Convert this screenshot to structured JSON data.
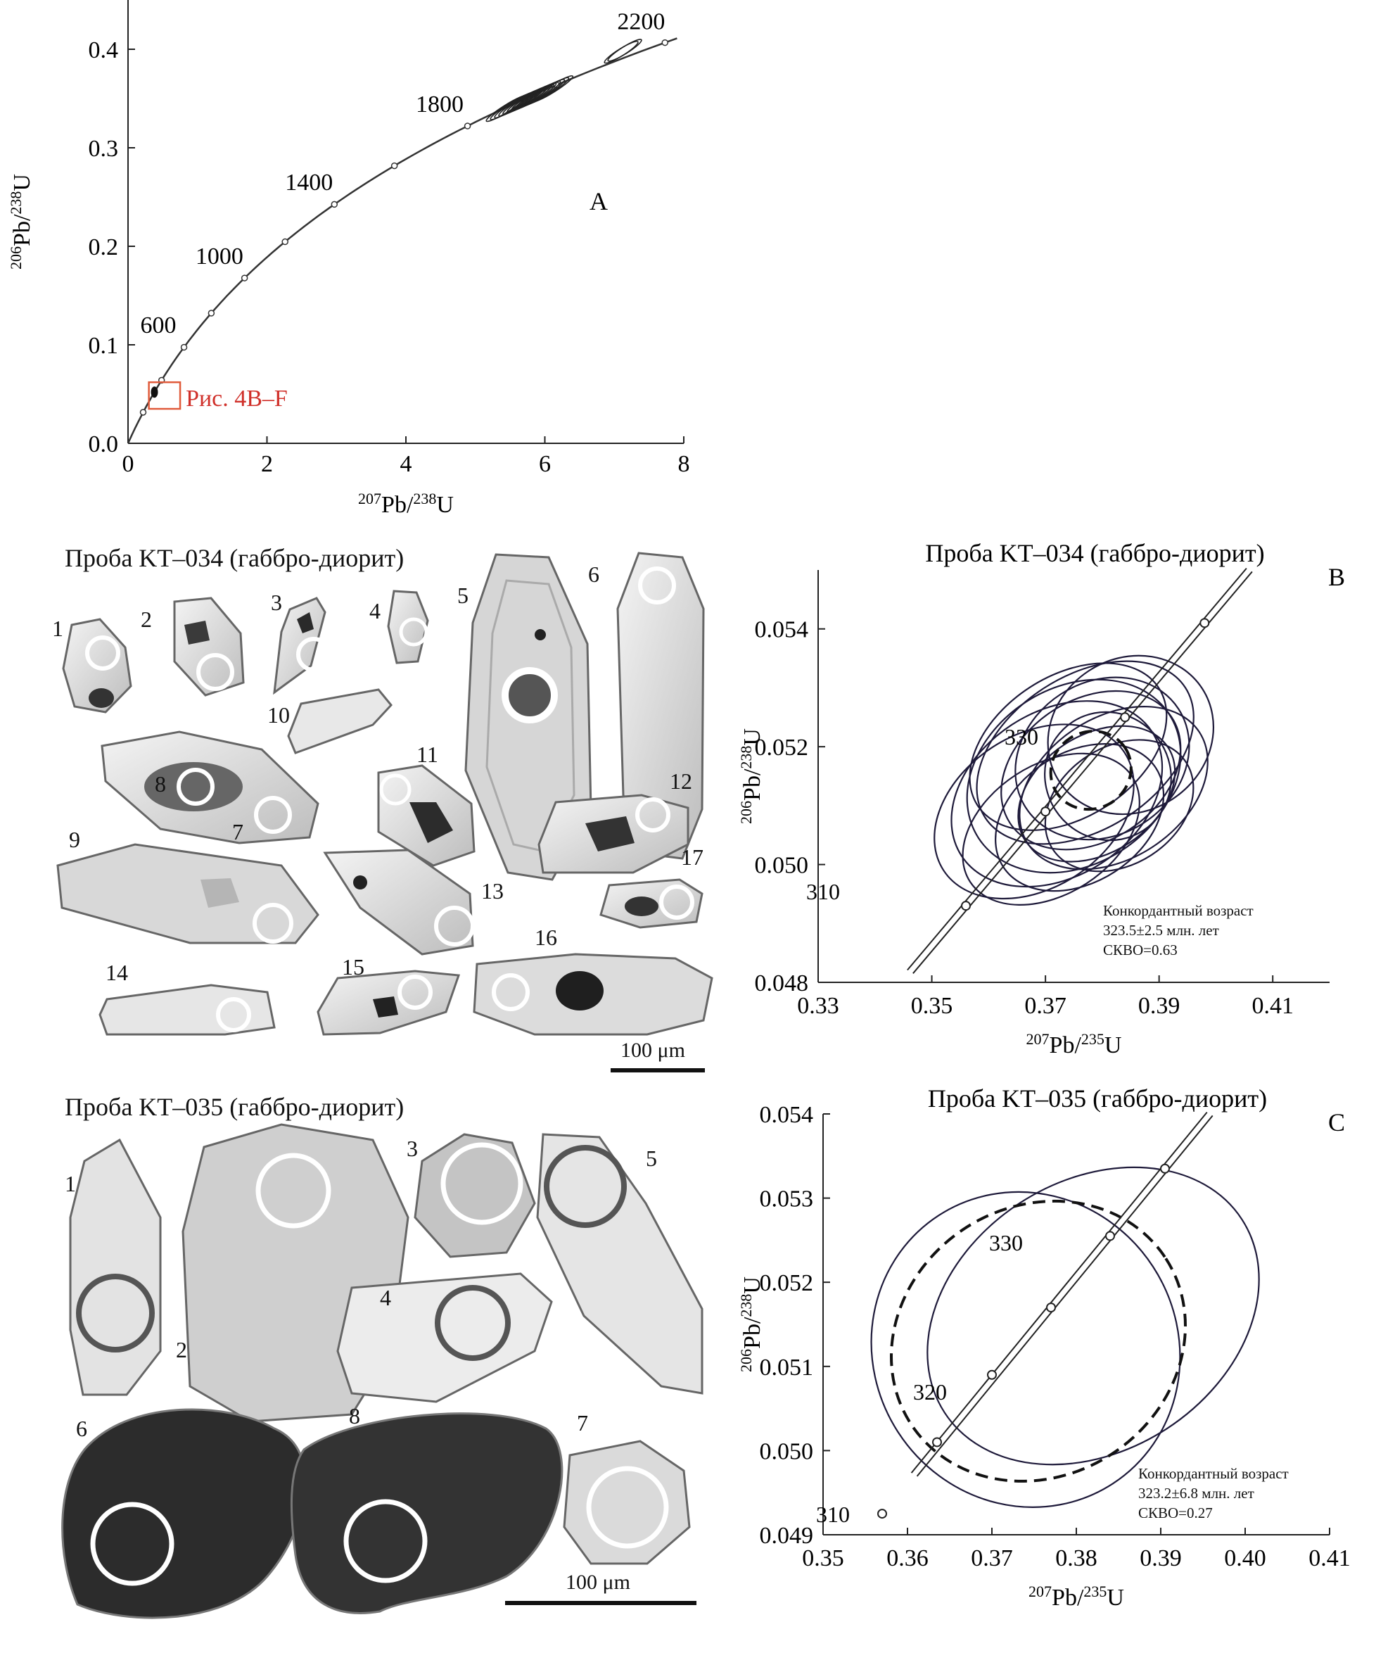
{
  "chart_data": [
    {
      "panel": "A",
      "type": "line",
      "xlabel": "207Pb/238U",
      "ylabel": "206Pb/238U",
      "xlim": [
        0,
        8
      ],
      "ylim": [
        0,
        0.45
      ],
      "x_ticks": [
        "0",
        "2",
        "4",
        "6",
        "8"
      ],
      "y_ticks": [
        "0.0",
        "0.1",
        "0.2",
        "0.3",
        "0.4"
      ],
      "concordia_age_labels": [
        "600",
        "1000",
        "1400",
        "1800",
        "2200"
      ],
      "concordia_labeled_points": [
        {
          "age": "600",
          "x": 0.8,
          "y": 0.098
        },
        {
          "age": "1000",
          "x": 1.68,
          "y": 0.168
        },
        {
          "age": "1400",
          "x": 2.97,
          "y": 0.243
        },
        {
          "age": "1800",
          "x": 4.85,
          "y": 0.322
        },
        {
          "age": "2200",
          "x": 7.75,
          "y": 0.406
        }
      ],
      "inset_label": "Рис. 4B–F",
      "inset_box": {
        "x": [
          0.3,
          0.75
        ],
        "y": [
          0.035,
          0.062
        ]
      },
      "data_clusters": [
        {
          "x": 5.8,
          "y": 0.35,
          "n": 12
        },
        {
          "x": 7.1,
          "y": 0.397,
          "n": 2
        },
        {
          "x": 0.38,
          "y": 0.052,
          "n": 1
        }
      ],
      "panel_letter": "A"
    },
    {
      "panel": "B",
      "type": "scatter",
      "title": "Проба KT–034 (габбро-диорит)",
      "xlabel": "207Pb/235U",
      "ylabel": "206Pb/238U",
      "xlim": [
        0.33,
        0.42
      ],
      "ylim": [
        0.048,
        0.055
      ],
      "x_ticks": [
        "0.33",
        "0.35",
        "0.37",
        "0.39",
        "0.41"
      ],
      "y_ticks": [
        "0.048",
        "0.050",
        "0.052",
        "0.054"
      ],
      "concordia_age_labels": [
        "310",
        "330"
      ],
      "concordia_points": [
        {
          "x": 0.356,
          "y": 0.0493
        },
        {
          "x": 0.37,
          "y": 0.0509
        },
        {
          "x": 0.384,
          "y": 0.0525
        },
        {
          "x": 0.398,
          "y": 0.0541
        }
      ],
      "error_ellipses": [
        {
          "cx": 0.368,
          "cy": 0.0509,
          "rx": 0.019,
          "ry": 0.0013
        },
        {
          "cx": 0.372,
          "cy": 0.0512,
          "rx": 0.02,
          "ry": 0.0014
        },
        {
          "cx": 0.375,
          "cy": 0.0515,
          "rx": 0.02,
          "ry": 0.0015
        },
        {
          "cx": 0.378,
          "cy": 0.0516,
          "rx": 0.017,
          "ry": 0.0012
        },
        {
          "cx": 0.38,
          "cy": 0.0518,
          "rx": 0.016,
          "ry": 0.0013
        },
        {
          "cx": 0.382,
          "cy": 0.0513,
          "rx": 0.018,
          "ry": 0.0012
        },
        {
          "cx": 0.379,
          "cy": 0.0512,
          "rx": 0.015,
          "ry": 0.001
        },
        {
          "cx": 0.376,
          "cy": 0.0508,
          "rx": 0.016,
          "ry": 0.0011
        },
        {
          "cx": 0.374,
          "cy": 0.052,
          "rx": 0.019,
          "ry": 0.0012
        },
        {
          "cx": 0.385,
          "cy": 0.0522,
          "rx": 0.015,
          "ry": 0.0013
        },
        {
          "cx": 0.383,
          "cy": 0.051,
          "rx": 0.014,
          "ry": 0.001
        },
        {
          "cx": 0.371,
          "cy": 0.0506,
          "rx": 0.017,
          "ry": 0.0011
        },
        {
          "cx": 0.377,
          "cy": 0.0519,
          "rx": 0.021,
          "ry": 0.0013
        },
        {
          "cx": 0.381,
          "cy": 0.0515,
          "rx": 0.011,
          "ry": 0.0011
        }
      ],
      "concordant_ellipse": {
        "cx": 0.378,
        "cy": 0.0516,
        "rx": 0.0072,
        "ry": 0.00065
      },
      "legend_lines": [
        "Конкордантный возраст",
        "323.5±2.5 млн. лет",
        "СКВО=0.63"
      ],
      "panel_letter": "B"
    },
    {
      "panel": "C",
      "type": "scatter",
      "title": "Проба KT–035 (габбро-диорит)",
      "xlabel": "207Pb/235U",
      "ylabel": "206Pb/238U",
      "xlim": [
        0.35,
        0.41
      ],
      "ylim": [
        0.049,
        0.054
      ],
      "x_ticks": [
        "0.35",
        "0.36",
        "0.37",
        "0.38",
        "0.39",
        "0.40",
        "0.41"
      ],
      "y_ticks": [
        "0.049",
        "0.050",
        "0.051",
        "0.052",
        "0.053",
        "0.054"
      ],
      "concordia_age_labels": [
        "310",
        "320",
        "330"
      ],
      "concordia_points": [
        {
          "x": 0.357,
          "y": 0.04925
        },
        {
          "x": 0.3635,
          "y": 0.0501
        },
        {
          "x": 0.37,
          "y": 0.0509
        },
        {
          "x": 0.377,
          "y": 0.0517
        },
        {
          "x": 0.384,
          "y": 0.05255
        },
        {
          "x": 0.3905,
          "y": 0.05335
        }
      ],
      "error_ellipses": [
        {
          "cx": 0.374,
          "cy": 0.0512,
          "rx": 0.018,
          "ry": 0.0019
        },
        {
          "cx": 0.382,
          "cy": 0.0516,
          "rx": 0.021,
          "ry": 0.0016
        }
      ],
      "concordant_ellipse": {
        "cx": 0.3755,
        "cy": 0.0513,
        "rx": 0.018,
        "ry": 0.0016
      },
      "legend_lines": [
        "Конкордантный возраст",
        "323.2±6.8 млн. лет",
        "СКВО=0.27"
      ],
      "panel_letter": "C"
    }
  ],
  "sample_034": {
    "title": "Проба KT–034 (габбро-диорит)",
    "scale": "100 μm",
    "grain_numbers": [
      "1",
      "2",
      "3",
      "4",
      "5",
      "6",
      "7",
      "8",
      "9",
      "10",
      "11",
      "12",
      "13",
      "14",
      "15",
      "16",
      "17"
    ]
  },
  "sample_035": {
    "title": "Проба KT–035 (габбро-диорит)",
    "scale": "100 μm",
    "grain_numbers": [
      "1",
      "2",
      "3",
      "4",
      "5",
      "6",
      "7",
      "8"
    ]
  }
}
